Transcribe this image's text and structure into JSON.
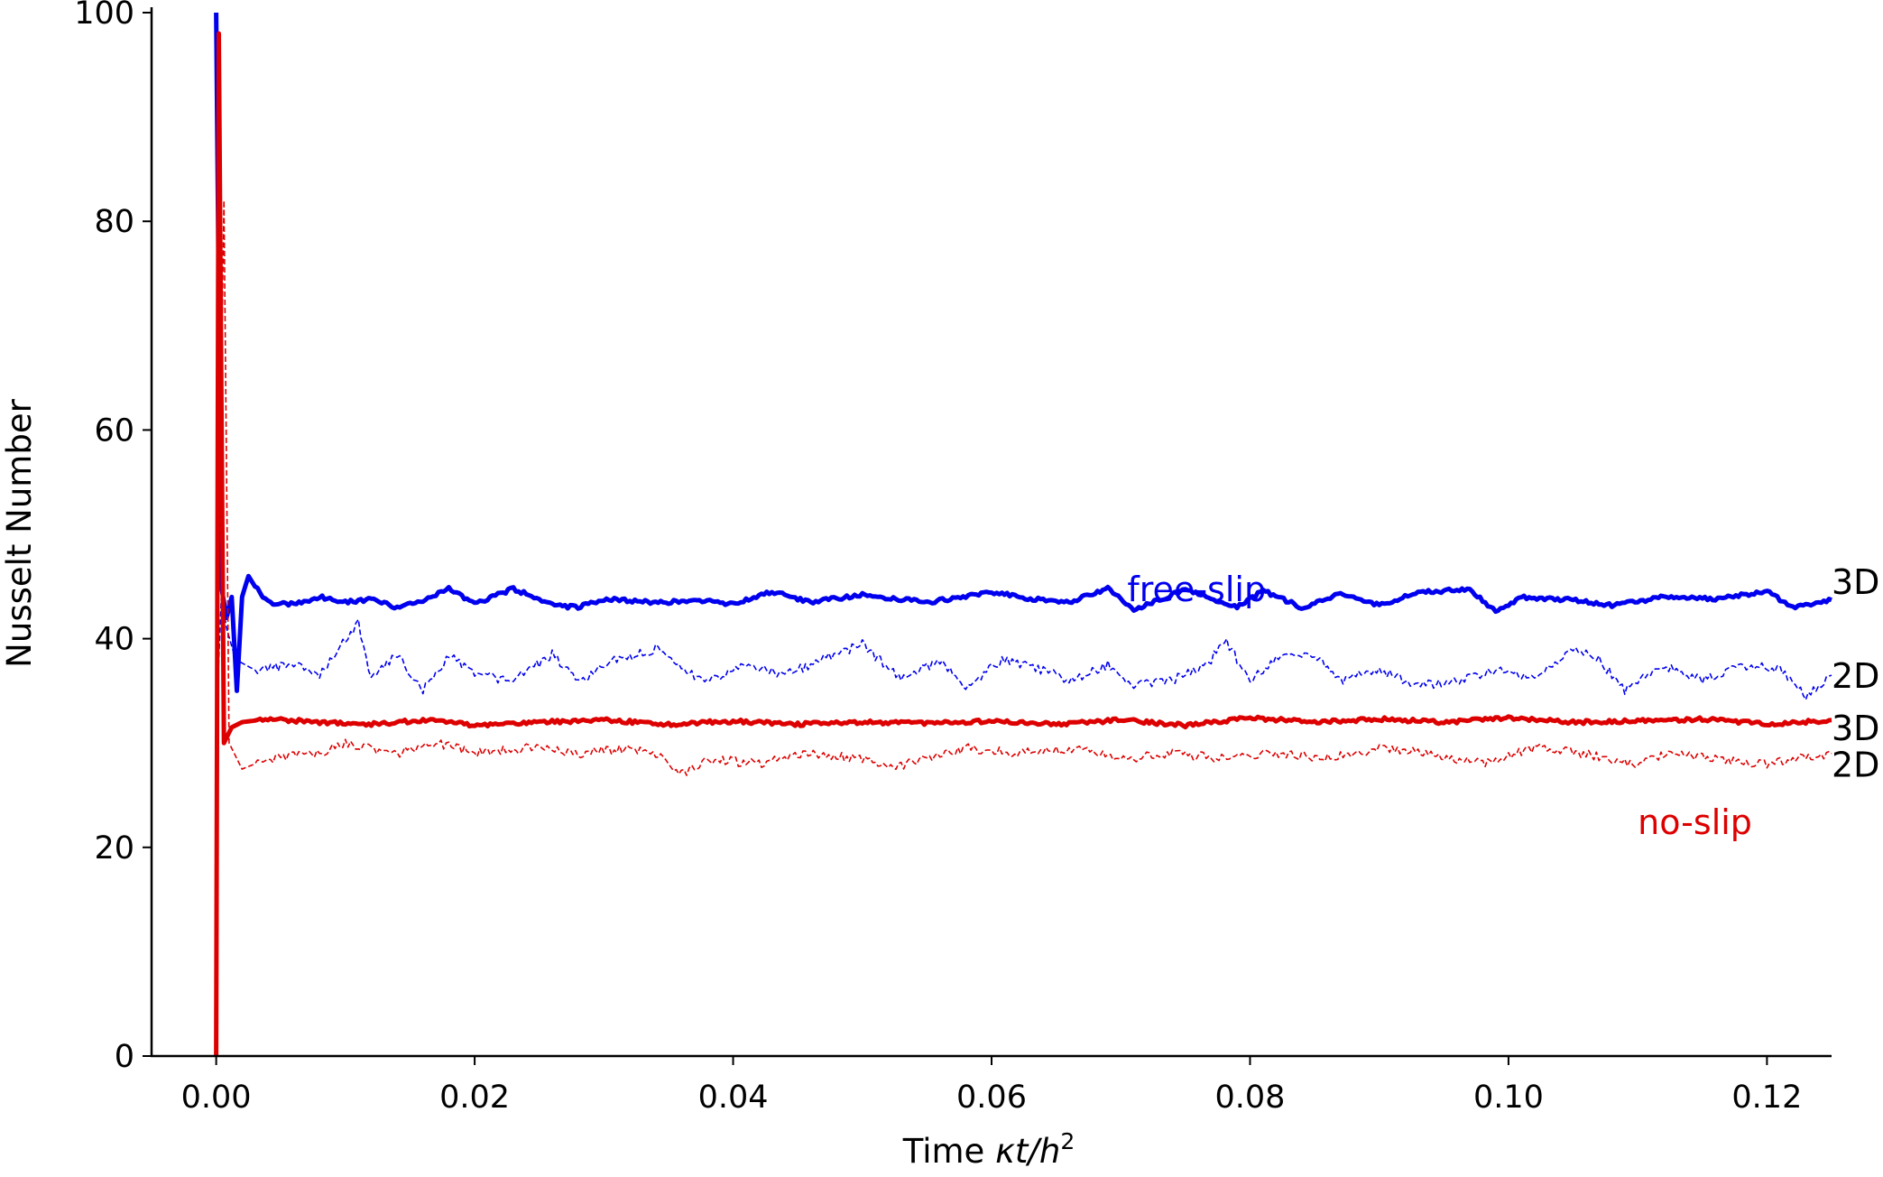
{
  "chart_data": {
    "type": "line",
    "title": "",
    "xlabel_prefix": "Time ",
    "xlabel_var": "κt/h",
    "xlabel_sup": "2",
    "ylabel": "Nusselt Number",
    "xlim": [
      -0.005,
      0.125
    ],
    "ylim": [
      0,
      100
    ],
    "xticks": [
      0.0,
      0.02,
      0.04,
      0.06,
      0.08,
      0.1,
      0.12
    ],
    "xtick_labels": [
      "0.00",
      "0.02",
      "0.04",
      "0.06",
      "0.08",
      "0.10",
      "0.12"
    ],
    "yticks": [
      0,
      20,
      40,
      60,
      80,
      100
    ],
    "ytick_labels": [
      "0",
      "20",
      "40",
      "60",
      "80",
      "100"
    ],
    "grid": false,
    "colors": {
      "free_slip": "#0000ee",
      "no_slip": "#dd0000"
    },
    "series": [
      {
        "group": "free-slip",
        "dim": "3D",
        "style": "solid-thick",
        "color": "#0000ee",
        "points": [
          [
            0,
            100
          ],
          [
            0.0004,
            45
          ],
          [
            0.0008,
            42
          ],
          [
            0.0012,
            44
          ],
          [
            0.0016,
            35
          ],
          [
            0.002,
            44
          ],
          [
            0.0025,
            46
          ],
          [
            0.003,
            45
          ],
          [
            0.004,
            43.5
          ],
          [
            0.006,
            43.3
          ],
          [
            0.008,
            44
          ],
          [
            0.01,
            43.5
          ],
          [
            0.012,
            43.8
          ],
          [
            0.014,
            43
          ],
          [
            0.016,
            43.6
          ],
          [
            0.018,
            44.8
          ],
          [
            0.02,
            43.3
          ],
          [
            0.023,
            44.8
          ],
          [
            0.026,
            43.2
          ],
          [
            0.028,
            43
          ],
          [
            0.03,
            43.8
          ],
          [
            0.034,
            43.5
          ],
          [
            0.038,
            43.6
          ],
          [
            0.04,
            43.3
          ],
          [
            0.043,
            44.5
          ],
          [
            0.046,
            43.5
          ],
          [
            0.05,
            44.2
          ],
          [
            0.055,
            43.5
          ],
          [
            0.058,
            44
          ],
          [
            0.06,
            44.5
          ],
          [
            0.063,
            43.8
          ],
          [
            0.066,
            43.5
          ],
          [
            0.069,
            44.8
          ],
          [
            0.071,
            42.8
          ],
          [
            0.075,
            44.7
          ],
          [
            0.077,
            43.8
          ],
          [
            0.079,
            43
          ],
          [
            0.081,
            44.6
          ],
          [
            0.084,
            43
          ],
          [
            0.087,
            44.3
          ],
          [
            0.09,
            43.2
          ],
          [
            0.093,
            44.4
          ],
          [
            0.097,
            44.8
          ],
          [
            0.099,
            42.6
          ],
          [
            0.101,
            44
          ],
          [
            0.105,
            43.7
          ],
          [
            0.108,
            43.2
          ],
          [
            0.112,
            44
          ],
          [
            0.116,
            43.8
          ],
          [
            0.12,
            44.5
          ],
          [
            0.122,
            43
          ],
          [
            0.125,
            43.7
          ]
        ]
      },
      {
        "group": "free-slip",
        "dim": "2D",
        "style": "dashed-thin",
        "color": "#0000ee",
        "points": [
          [
            0,
            32
          ],
          [
            0.0004,
            44
          ],
          [
            0.0008,
            41
          ],
          [
            0.0015,
            38
          ],
          [
            0.003,
            37
          ],
          [
            0.006,
            37.5
          ],
          [
            0.008,
            36.5
          ],
          [
            0.01,
            40
          ],
          [
            0.011,
            41.5
          ],
          [
            0.012,
            36
          ],
          [
            0.014,
            38.5
          ],
          [
            0.016,
            35
          ],
          [
            0.018,
            38.5
          ],
          [
            0.02,
            36.5
          ],
          [
            0.023,
            36
          ],
          [
            0.026,
            38.5
          ],
          [
            0.028,
            36
          ],
          [
            0.031,
            38
          ],
          [
            0.034,
            39
          ],
          [
            0.036,
            37
          ],
          [
            0.038,
            36
          ],
          [
            0.041,
            37.5
          ],
          [
            0.044,
            36.5
          ],
          [
            0.047,
            38
          ],
          [
            0.05,
            39.5
          ],
          [
            0.053,
            36
          ],
          [
            0.056,
            38
          ],
          [
            0.058,
            35.5
          ],
          [
            0.061,
            38
          ],
          [
            0.064,
            37
          ],
          [
            0.066,
            36
          ],
          [
            0.069,
            37.5
          ],
          [
            0.071,
            35.5
          ],
          [
            0.074,
            36
          ],
          [
            0.077,
            38
          ],
          [
            0.078,
            40
          ],
          [
            0.08,
            36
          ],
          [
            0.082,
            38
          ],
          [
            0.085,
            38.5
          ],
          [
            0.087,
            36
          ],
          [
            0.09,
            37
          ],
          [
            0.093,
            35.5
          ],
          [
            0.096,
            36
          ],
          [
            0.099,
            37
          ],
          [
            0.102,
            36
          ],
          [
            0.105,
            39
          ],
          [
            0.107,
            38
          ],
          [
            0.109,
            35
          ],
          [
            0.112,
            37.5
          ],
          [
            0.115,
            36
          ],
          [
            0.118,
            37.5
          ],
          [
            0.121,
            37
          ],
          [
            0.123,
            34.5
          ],
          [
            0.125,
            36.5
          ]
        ]
      },
      {
        "group": "no-slip",
        "dim": "3D",
        "style": "solid-thick",
        "color": "#dd0000",
        "points": [
          [
            0,
            0
          ],
          [
            0.0002,
            98
          ],
          [
            0.0006,
            30
          ],
          [
            0.0012,
            31.5
          ],
          [
            0.002,
            32
          ],
          [
            0.004,
            32.3
          ],
          [
            0.008,
            32
          ],
          [
            0.012,
            31.8
          ],
          [
            0.016,
            32.2
          ],
          [
            0.02,
            31.7
          ],
          [
            0.025,
            32
          ],
          [
            0.03,
            32.2
          ],
          [
            0.035,
            31.8
          ],
          [
            0.04,
            32.1
          ],
          [
            0.045,
            31.8
          ],
          [
            0.05,
            32
          ],
          [
            0.055,
            31.9
          ],
          [
            0.06,
            32.1
          ],
          [
            0.065,
            31.8
          ],
          [
            0.07,
            32.2
          ],
          [
            0.075,
            31.7
          ],
          [
            0.08,
            32.4
          ],
          [
            0.085,
            32
          ],
          [
            0.09,
            32.3
          ],
          [
            0.095,
            32
          ],
          [
            0.1,
            32.4
          ],
          [
            0.105,
            32
          ],
          [
            0.11,
            32.1
          ],
          [
            0.115,
            32.3
          ],
          [
            0.12,
            31.8
          ],
          [
            0.125,
            32.2
          ]
        ]
      },
      {
        "group": "no-slip",
        "dim": "2D",
        "style": "dashed-thin",
        "color": "#dd0000",
        "points": [
          [
            0,
            30
          ],
          [
            0.0006,
            82
          ],
          [
            0.001,
            30
          ],
          [
            0.002,
            27.5
          ],
          [
            0.004,
            28.5
          ],
          [
            0.008,
            29
          ],
          [
            0.01,
            30
          ],
          [
            0.014,
            29
          ],
          [
            0.017,
            30
          ],
          [
            0.02,
            29
          ],
          [
            0.024,
            29.5
          ],
          [
            0.028,
            29
          ],
          [
            0.032,
            29.5
          ],
          [
            0.034,
            29
          ],
          [
            0.036,
            27
          ],
          [
            0.038,
            28.5
          ],
          [
            0.042,
            28
          ],
          [
            0.046,
            29
          ],
          [
            0.05,
            28.5
          ],
          [
            0.052,
            27.5
          ],
          [
            0.055,
            28.5
          ],
          [
            0.058,
            29.5
          ],
          [
            0.062,
            29
          ],
          [
            0.066,
            29.5
          ],
          [
            0.07,
            28.5
          ],
          [
            0.074,
            29
          ],
          [
            0.078,
            28.5
          ],
          [
            0.082,
            29
          ],
          [
            0.086,
            28.5
          ],
          [
            0.09,
            29.5
          ],
          [
            0.094,
            29
          ],
          [
            0.098,
            28
          ],
          [
            0.102,
            29.5
          ],
          [
            0.106,
            29
          ],
          [
            0.11,
            28
          ],
          [
            0.112,
            29
          ],
          [
            0.116,
            28.5
          ],
          [
            0.12,
            28
          ],
          [
            0.125,
            29
          ]
        ]
      }
    ],
    "annotations": [
      {
        "text": "free-slip",
        "x": 0.0705,
        "y": 44.8,
        "color": "#0000ee"
      },
      {
        "text": "no-slip",
        "x": 0.11,
        "y": 22.5,
        "color": "#dd0000"
      }
    ],
    "end_labels": [
      {
        "text": "3D",
        "y": 45.5
      },
      {
        "text": "2D",
        "y": 36.5
      },
      {
        "text": "3D",
        "y": 31.5
      },
      {
        "text": "2D",
        "y": 28.0
      }
    ]
  }
}
